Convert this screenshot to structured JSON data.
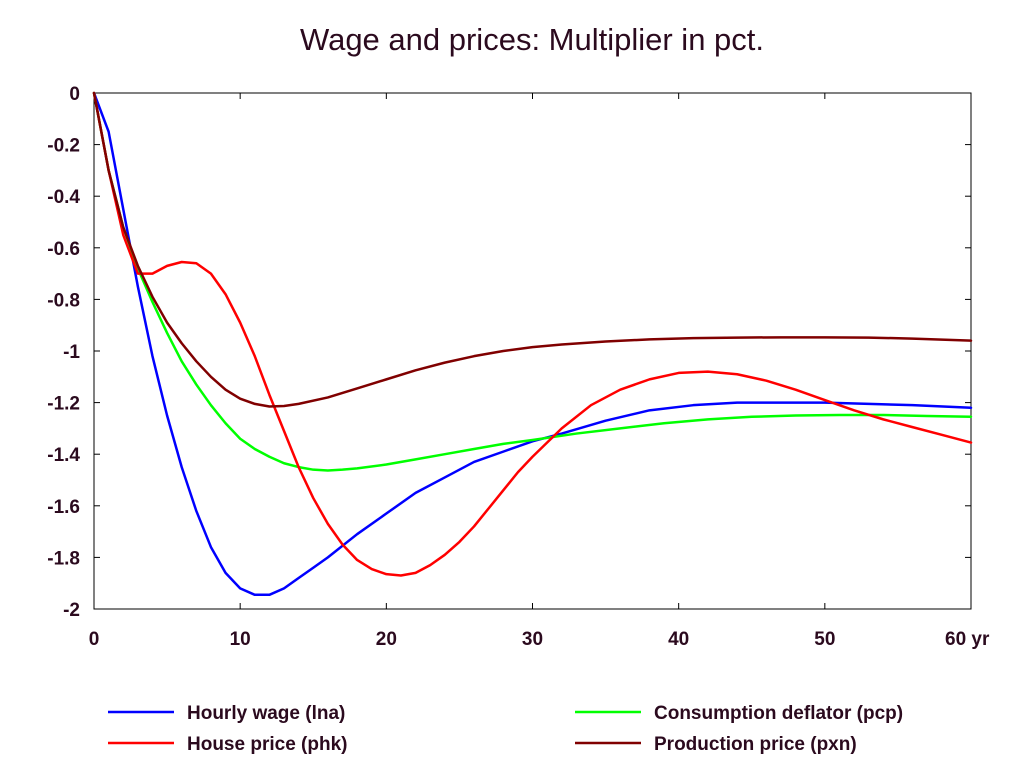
{
  "chart_data": {
    "type": "line",
    "title": "Wage and prices: Multiplier in pct.",
    "xlabel": "",
    "ylabel": "",
    "x_unit": "yr",
    "xlim": [
      0,
      60
    ],
    "ylim": [
      -2,
      0
    ],
    "x_ticks": [
      0,
      10,
      20,
      30,
      40,
      50,
      60
    ],
    "x_tick_labels": [
      "0",
      "10",
      "20",
      "30",
      "40",
      "50",
      "60 yr"
    ],
    "y_ticks": [
      0,
      -0.2,
      -0.4,
      -0.6,
      -0.8,
      -1,
      -1.2,
      -1.4,
      -1.6,
      -1.8,
      -2
    ],
    "y_tick_labels": [
      "0",
      "-0.2",
      "-0.4",
      "-0.6",
      "-0.8",
      "-1",
      "-1.2",
      "-1.4",
      "-1.6",
      "-1.8",
      "-2"
    ],
    "grid": false,
    "legend_position": "bottom",
    "series": [
      {
        "name": "Hourly wage (lna)",
        "color": "#0000ff",
        "points": [
          [
            0,
            0
          ],
          [
            1,
            -0.15
          ],
          [
            2,
            -0.45
          ],
          [
            3,
            -0.75
          ],
          [
            4,
            -1.02
          ],
          [
            5,
            -1.25
          ],
          [
            6,
            -1.45
          ],
          [
            7,
            -1.62
          ],
          [
            8,
            -1.76
          ],
          [
            9,
            -1.86
          ],
          [
            10,
            -1.92
          ],
          [
            11,
            -1.945
          ],
          [
            12,
            -1.945
          ],
          [
            13,
            -1.92
          ],
          [
            14,
            -1.88
          ],
          [
            15,
            -1.84
          ],
          [
            16,
            -1.8
          ],
          [
            18,
            -1.71
          ],
          [
            20,
            -1.63
          ],
          [
            22,
            -1.55
          ],
          [
            24,
            -1.49
          ],
          [
            26,
            -1.43
          ],
          [
            28,
            -1.39
          ],
          [
            30,
            -1.35
          ],
          [
            32,
            -1.32
          ],
          [
            35,
            -1.27
          ],
          [
            38,
            -1.23
          ],
          [
            41,
            -1.21
          ],
          [
            44,
            -1.2
          ],
          [
            47,
            -1.2
          ],
          [
            50,
            -1.2
          ],
          [
            53,
            -1.205
          ],
          [
            56,
            -1.21
          ],
          [
            60,
            -1.22
          ]
        ]
      },
      {
        "name": "Consumption deflator (pcp)",
        "color": "#00ff00",
        "points": [
          [
            0,
            0
          ],
          [
            1,
            -0.3
          ],
          [
            2,
            -0.52
          ],
          [
            3,
            -0.68
          ],
          [
            4,
            -0.81
          ],
          [
            5,
            -0.93
          ],
          [
            6,
            -1.04
          ],
          [
            7,
            -1.13
          ],
          [
            8,
            -1.21
          ],
          [
            9,
            -1.28
          ],
          [
            10,
            -1.34
          ],
          [
            11,
            -1.38
          ],
          [
            12,
            -1.41
          ],
          [
            13,
            -1.435
          ],
          [
            14,
            -1.45
          ],
          [
            15,
            -1.46
          ],
          [
            16,
            -1.463
          ],
          [
            17,
            -1.46
          ],
          [
            18,
            -1.455
          ],
          [
            20,
            -1.44
          ],
          [
            22,
            -1.42
          ],
          [
            24,
            -1.4
          ],
          [
            26,
            -1.38
          ],
          [
            28,
            -1.36
          ],
          [
            30,
            -1.345
          ],
          [
            33,
            -1.32
          ],
          [
            36,
            -1.3
          ],
          [
            39,
            -1.28
          ],
          [
            42,
            -1.265
          ],
          [
            45,
            -1.255
          ],
          [
            48,
            -1.25
          ],
          [
            51,
            -1.248
          ],
          [
            54,
            -1.248
          ],
          [
            57,
            -1.252
          ],
          [
            60,
            -1.255
          ]
        ]
      },
      {
        "name": "House price (phk)",
        "color": "#ff0000",
        "points": [
          [
            0,
            0
          ],
          [
            1,
            -0.3
          ],
          [
            2,
            -0.55
          ],
          [
            3,
            -0.7
          ],
          [
            4,
            -0.7
          ],
          [
            5,
            -0.67
          ],
          [
            6,
            -0.655
          ],
          [
            7,
            -0.66
          ],
          [
            8,
            -0.7
          ],
          [
            9,
            -0.78
          ],
          [
            10,
            -0.89
          ],
          [
            11,
            -1.02
          ],
          [
            12,
            -1.17
          ],
          [
            13,
            -1.31
          ],
          [
            14,
            -1.45
          ],
          [
            15,
            -1.57
          ],
          [
            16,
            -1.67
          ],
          [
            17,
            -1.75
          ],
          [
            18,
            -1.81
          ],
          [
            19,
            -1.845
          ],
          [
            20,
            -1.865
          ],
          [
            21,
            -1.87
          ],
          [
            22,
            -1.86
          ],
          [
            23,
            -1.83
          ],
          [
            24,
            -1.79
          ],
          [
            25,
            -1.74
          ],
          [
            26,
            -1.68
          ],
          [
            27,
            -1.61
          ],
          [
            28,
            -1.54
          ],
          [
            29,
            -1.47
          ],
          [
            30,
            -1.41
          ],
          [
            32,
            -1.3
          ],
          [
            34,
            -1.21
          ],
          [
            36,
            -1.15
          ],
          [
            38,
            -1.11
          ],
          [
            40,
            -1.085
          ],
          [
            42,
            -1.08
          ],
          [
            44,
            -1.09
          ],
          [
            46,
            -1.115
          ],
          [
            48,
            -1.15
          ],
          [
            50,
            -1.19
          ],
          [
            52,
            -1.23
          ],
          [
            54,
            -1.265
          ],
          [
            56,
            -1.295
          ],
          [
            58,
            -1.325
          ],
          [
            60,
            -1.355
          ]
        ]
      },
      {
        "name": "Production price (pxn)",
        "color": "#800000",
        "points": [
          [
            0,
            0
          ],
          [
            1,
            -0.3
          ],
          [
            2,
            -0.52
          ],
          [
            3,
            -0.67
          ],
          [
            4,
            -0.79
          ],
          [
            5,
            -0.89
          ],
          [
            6,
            -0.97
          ],
          [
            7,
            -1.04
          ],
          [
            8,
            -1.1
          ],
          [
            9,
            -1.15
          ],
          [
            10,
            -1.185
          ],
          [
            11,
            -1.205
          ],
          [
            12,
            -1.215
          ],
          [
            13,
            -1.213
          ],
          [
            14,
            -1.205
          ],
          [
            16,
            -1.18
          ],
          [
            18,
            -1.145
          ],
          [
            20,
            -1.11
          ],
          [
            22,
            -1.075
          ],
          [
            24,
            -1.045
          ],
          [
            26,
            -1.02
          ],
          [
            28,
            -1.0
          ],
          [
            30,
            -0.985
          ],
          [
            32,
            -0.975
          ],
          [
            35,
            -0.963
          ],
          [
            38,
            -0.955
          ],
          [
            41,
            -0.95
          ],
          [
            44,
            -0.948
          ],
          [
            47,
            -0.947
          ],
          [
            50,
            -0.947
          ],
          [
            53,
            -0.948
          ],
          [
            56,
            -0.952
          ],
          [
            60,
            -0.96
          ]
        ]
      }
    ]
  }
}
